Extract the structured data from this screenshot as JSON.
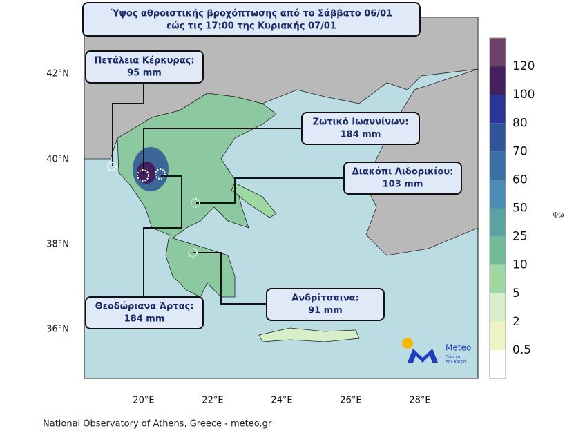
{
  "title": {
    "lines": [
      "Ύψος αθροιστικής βροχόπτωσης από το Σάββατο 06/01",
      "εώς τις 17:00 της Κυριακής 07/01"
    ]
  },
  "map": {
    "lat_labels": [
      "42°N",
      "40°N",
      "38°N",
      "36°N"
    ],
    "lon_labels": [
      "20°E",
      "22°E",
      "24°E",
      "26°E",
      "28°E"
    ]
  },
  "callouts": [
    {
      "name": "Πετάλεια Κέρκυρας:",
      "value": "95 mm"
    },
    {
      "name": "Ζωτικό Ιωαννίνων:",
      "value": "184 mm"
    },
    {
      "name": "Διακόπι Λιδορικίου:",
      "value": "103 mm"
    },
    {
      "name": "Ανδρίτσαινα:",
      "value": "91 mm"
    },
    {
      "name": "Θεοδώριανα Άρτας:",
      "value": "184 mm"
    }
  ],
  "colorbar": {
    "labels": [
      "120",
      "100",
      "80",
      "70",
      "60",
      "50",
      "25",
      "10",
      "5",
      "2",
      "0.5"
    ],
    "colors": [
      "#6e4068",
      "#43215f",
      "#2b3597",
      "#2f5597",
      "#3b6fa8",
      "#4b8cb4",
      "#5aa3a0",
      "#72bb9a",
      "#a0d8a4",
      "#d6efc8",
      "#eef3c4",
      "#ffffff"
    ]
  },
  "logo": {
    "name": "Meteo",
    "tagline": [
      "Όλα για",
      "τον καιρό"
    ]
  },
  "edge_text": "Φω",
  "footer": "National Observatory of Athens, Greece - meteo.gr"
}
